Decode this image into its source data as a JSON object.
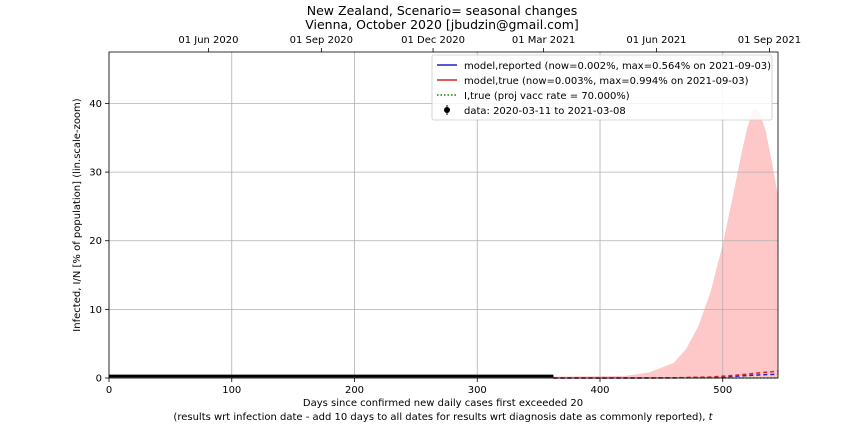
{
  "chart_data": {
    "type": "line",
    "title": "New Zealand, Scenario= seasonal changes",
    "subtitle": "Vienna, October 2020 [jbudzin@gmail.com]",
    "xlabel": "Days since confirmed new daily cases first exceeded 20",
    "xlabel2": "(results wrt infection date - add 10 days to all dates for results wrt diagnosis date as commonly reported), ",
    "xlabel2_italic": "t",
    "ylabel": "Infected, I/N [% of population] (lin.scale-zoom)",
    "xlim": [
      0,
      545
    ],
    "ylim": [
      0,
      47.5
    ],
    "x_ticks": [
      0,
      100,
      200,
      300,
      400,
      500
    ],
    "y_ticks": [
      0,
      10,
      20,
      30,
      40
    ],
    "top_axis_ticks": [
      {
        "x": 81,
        "label": "01 Jun 2020"
      },
      {
        "x": 173,
        "label": "01 Sep 2020"
      },
      {
        "x": 264,
        "label": "01 Dec 2020"
      },
      {
        "x": 354,
        "label": "01 Mar 2021"
      },
      {
        "x": 446,
        "label": "01 Jun 2021"
      },
      {
        "x": 538,
        "label": "01 Sep 2021"
      }
    ],
    "grid": true,
    "legend_position": "top-right",
    "legend": [
      {
        "key": "reported",
        "label": "model,reported (now=0.002%, max=0.564% on 2021-09-03)",
        "style": "solid",
        "color": "#2222cc"
      },
      {
        "key": "true",
        "label": "model,true (now=0.003%, max=0.994% on 2021-09-03)",
        "style": "solid",
        "color": "#dd2222"
      },
      {
        "key": "itrue",
        "label": "I,true (proj vacc rate = 70.000%)",
        "style": "dotted",
        "color": "#008800"
      },
      {
        "key": "data",
        "label": "data: 2020-03-11 to 2021-03-08",
        "style": "errorbar",
        "color": "#000000"
      }
    ],
    "series": [
      {
        "name": "model,reported",
        "color": "#2222cc",
        "x": [
          0,
          362
        ],
        "y": [
          0.1,
          0.1
        ],
        "x_proj": [
          362,
          420,
          460,
          490,
          510,
          525,
          535,
          545
        ],
        "y_proj": [
          0.0,
          0.0,
          0.02,
          0.1,
          0.25,
          0.4,
          0.5,
          0.56
        ]
      },
      {
        "name": "model,true",
        "color": "#dd2222",
        "x": [
          0,
          362
        ],
        "y": [
          0.2,
          0.2
        ],
        "x_proj": [
          362,
          420,
          460,
          490,
          510,
          525,
          535,
          545
        ],
        "y_proj": [
          0.0,
          0.0,
          0.03,
          0.15,
          0.4,
          0.65,
          0.85,
          0.99
        ]
      },
      {
        "name": "I,true",
        "color": "#008800",
        "x": [
          362,
          545
        ],
        "y": [
          0.0,
          0.0
        ]
      },
      {
        "name": "data",
        "color": "#000000",
        "x": [
          0,
          362
        ],
        "y": [
          0.3,
          0.3
        ]
      }
    ],
    "uncertainty_band": {
      "color": "#ffc8c8",
      "x": [
        362,
        420,
        440,
        460,
        470,
        480,
        490,
        500,
        510,
        515,
        520,
        525,
        530,
        535,
        540,
        545
      ],
      "upper": [
        0.2,
        0.3,
        0.8,
        2.2,
        4.2,
        7.5,
        12.5,
        19.5,
        28.0,
        32.5,
        36.5,
        39.2,
        38.8,
        36.0,
        31.5,
        26.5
      ],
      "lower": [
        0,
        0,
        0,
        0,
        0,
        0,
        0,
        0,
        0,
        0,
        0,
        0,
        0,
        0,
        0,
        0
      ]
    }
  }
}
